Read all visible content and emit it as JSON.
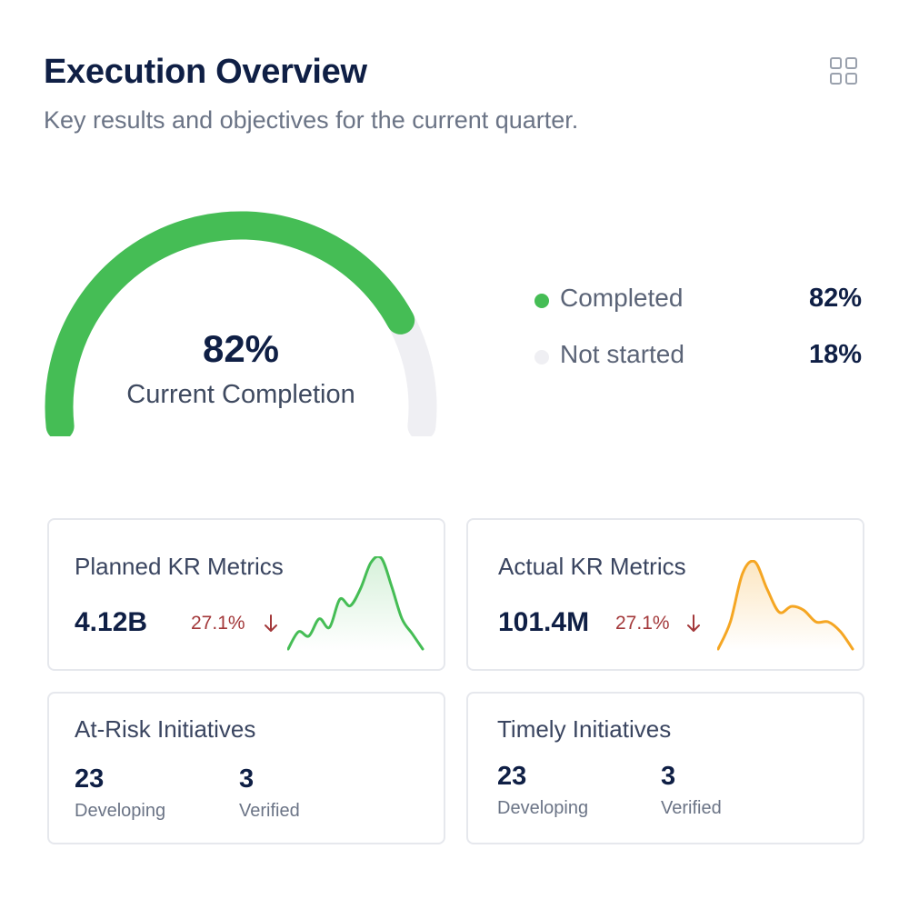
{
  "header": {
    "title": "Execution Overview",
    "subtitle": "Key results and objectives for the current quarter.",
    "menu_icon": "grid-icon"
  },
  "gauge": {
    "value_text": "82%",
    "label": "Current Completion",
    "fraction": 0.82,
    "completed_color": "#45bd55",
    "remaining_color": "#efeff3"
  },
  "legend": [
    {
      "label": "Completed",
      "value": "82%",
      "color": "#45bd55"
    },
    {
      "label": "Not started",
      "value": "18%",
      "color": "#efeff3"
    }
  ],
  "metric_cards": [
    {
      "title": "Planned KR Metrics",
      "value": "4.12B",
      "change": "27.1%",
      "trend_icon": "arrow-down-icon",
      "line_color": "#45bd55",
      "sparkline": [
        0,
        16,
        12,
        28,
        20,
        46,
        40,
        56,
        80,
        84,
        58,
        28,
        14,
        0
      ]
    },
    {
      "title": "Actual KR Metrics",
      "value": "101.4M",
      "change": "27.1%",
      "trend_icon": "arrow-down-icon",
      "line_color": "#f5a623",
      "sparkline": [
        0,
        28,
        78,
        90,
        62,
        38,
        44,
        40,
        28,
        28,
        18,
        0
      ]
    }
  ],
  "initiative_cards": [
    {
      "title": "At-Risk Initiatives",
      "stats": [
        {
          "value": "23",
          "label": "Developing"
        },
        {
          "value": "3",
          "label": "Verified"
        }
      ]
    },
    {
      "title": "Timely Initiatives",
      "stats": [
        {
          "value": "23",
          "label": "Developing"
        },
        {
          "value": "3",
          "label": "Verified"
        }
      ]
    }
  ]
}
